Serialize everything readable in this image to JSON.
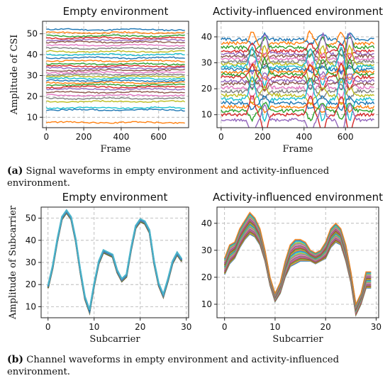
{
  "captions": {
    "a_label": "(a)",
    "a_text": "Signal waveforms in empty environment and activity-influenced environment.",
    "b_label": "(b)",
    "b_text": "Channel waveforms in empty environment and activity-influenced environment."
  },
  "chart_data": [
    {
      "id": "a-left",
      "type": "line",
      "title": "Empty environment",
      "xlabel": "Frame",
      "ylabel": "Amplitude of CSI",
      "xlim": [
        -20,
        760
      ],
      "ylim": [
        5,
        56
      ],
      "xticks": [
        0,
        200,
        400,
        600
      ],
      "yticks": [
        10,
        20,
        30,
        40,
        50
      ],
      "grid": true,
      "series_levels": [
        52,
        50.5,
        49,
        48,
        47,
        46,
        44.5,
        43,
        41.5,
        40,
        38.5,
        37,
        35.5,
        34.5,
        33.5,
        32.5,
        31.5,
        30.5,
        29.5,
        28.5,
        27.5,
        26.5,
        25.5,
        24.5,
        23.5,
        22,
        20.5,
        19,
        17.5,
        14.5,
        13.5,
        7.5
      ],
      "note_series": "roughly constant amplitude per subcarrier across frames 0-740"
    },
    {
      "id": "a-right",
      "type": "line",
      "title": "Activity-influenced environment",
      "xlabel": "Frame",
      "ylabel": "",
      "xlim": [
        -20,
        760
      ],
      "ylim": [
        5,
        46
      ],
      "xticks": [
        0,
        200,
        400,
        600
      ],
      "yticks": [
        10,
        20,
        30,
        40
      ],
      "grid": true,
      "series_levels": [
        39,
        37.5,
        36,
        34.5,
        33.5,
        32.5,
        31.5,
        30.5,
        29.5,
        28.5,
        27.5,
        26.5,
        25.5,
        24.5,
        23,
        22,
        20.5,
        19,
        17.5,
        16,
        14.5,
        13,
        11.5,
        10,
        8
      ],
      "disturbance_frames": [
        150,
        210,
        430,
        490,
        580,
        620
      ]
    },
    {
      "id": "b-left",
      "type": "line",
      "title": "Empty environment",
      "xlabel": "Subcarrier",
      "ylabel": "Amplitude of Subcarrier",
      "xlim": [
        -1.5,
        30.5
      ],
      "ylim": [
        5,
        55
      ],
      "xticks": [
        0,
        10,
        20,
        30
      ],
      "yticks": [
        10,
        20,
        30,
        40,
        50
      ],
      "grid": true,
      "x": [
        0,
        1,
        2,
        3,
        4,
        5,
        6,
        7,
        8,
        9,
        10,
        11,
        12,
        13,
        14,
        15,
        16,
        17,
        18,
        19,
        20,
        21,
        22,
        23,
        24,
        25,
        26,
        27,
        28,
        29
      ],
      "values": [
        19,
        28,
        40,
        50,
        53,
        50,
        40,
        26,
        14,
        8,
        20,
        30,
        35,
        34,
        33,
        26,
        22,
        24,
        36,
        46,
        49,
        48,
        44,
        30,
        20,
        15,
        22,
        30,
        34,
        31
      ]
    },
    {
      "id": "b-right",
      "type": "line",
      "title": "Activity-influenced environment",
      "xlabel": "Subcarrier",
      "ylabel": "",
      "xlim": [
        -1.5,
        30.5
      ],
      "ylim": [
        5,
        46
      ],
      "xticks": [
        0,
        10,
        20,
        30
      ],
      "yticks": [
        10,
        20,
        30,
        40
      ],
      "grid": true,
      "x": [
        0,
        1,
        2,
        3,
        4,
        5,
        6,
        7,
        8,
        9,
        10,
        11,
        12,
        13,
        14,
        15,
        16,
        17,
        18,
        19,
        20,
        21,
        22,
        23,
        24,
        25,
        26,
        27,
        28,
        29
      ],
      "upper": [
        27,
        32,
        33,
        38,
        41,
        44,
        42,
        38,
        30,
        20,
        14,
        18,
        26,
        32,
        34,
        34,
        33,
        30,
        29,
        30,
        33,
        38,
        40,
        38,
        32,
        22,
        10,
        14,
        22,
        22
      ],
      "lower": [
        21,
        25,
        27,
        31,
        34,
        36,
        35,
        32,
        26,
        17,
        11,
        14,
        20,
        24,
        25,
        26,
        26,
        26,
        25,
        26,
        27,
        31,
        33,
        32,
        26,
        18,
        6,
        10,
        16,
        16
      ]
    }
  ]
}
